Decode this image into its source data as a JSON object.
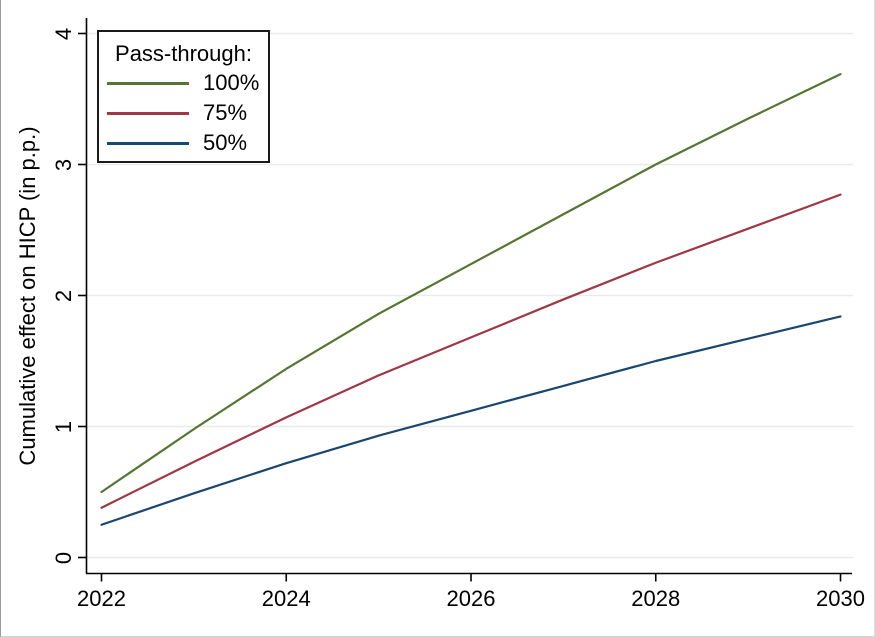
{
  "chart_data": {
    "type": "line",
    "title": "",
    "xlabel": "",
    "ylabel": "Cumulative effect on HICP (in p.p.)",
    "legend_title": "Pass-through:",
    "legend_position": "top-left",
    "grid": "horizontal",
    "x": [
      2022,
      2023,
      2024,
      2025,
      2026,
      2027,
      2028,
      2029,
      2030
    ],
    "series": [
      {
        "name": "100%",
        "color": "#557530",
        "values": [
          0.5,
          0.98,
          1.44,
          1.86,
          2.24,
          2.62,
          3.0,
          3.35,
          3.69
        ]
      },
      {
        "name": "75%",
        "color": "#a03747",
        "values": [
          0.38,
          0.73,
          1.07,
          1.39,
          1.68,
          1.97,
          2.25,
          2.51,
          2.77
        ]
      },
      {
        "name": "50%",
        "color": "#1a476f",
        "values": [
          0.25,
          0.49,
          0.72,
          0.93,
          1.12,
          1.31,
          1.5,
          1.67,
          1.84
        ]
      }
    ],
    "xticks": [
      "2022",
      "2024",
      "2026",
      "2028",
      "2030"
    ],
    "yticks": [
      "0",
      "1",
      "2",
      "3",
      "4"
    ],
    "xlim": [
      2022,
      2030
    ],
    "ylim": [
      0,
      4.1
    ],
    "colors": {
      "axis": "#000000",
      "gridline": "#eaeaea",
      "text": "#000000",
      "legend_border": "#1a1a1a",
      "background": "#ffffff"
    }
  }
}
